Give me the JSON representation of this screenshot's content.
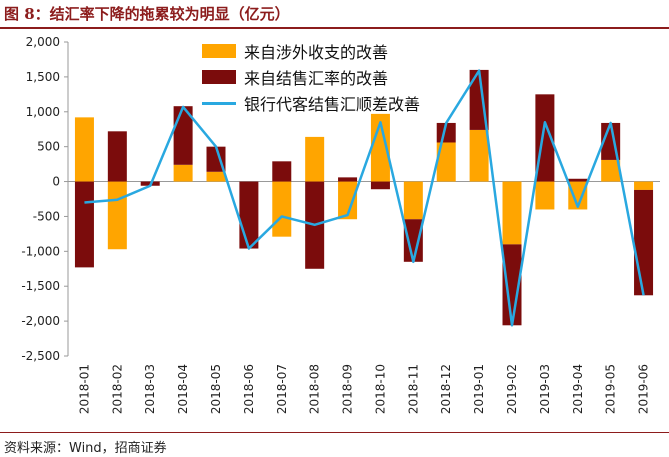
{
  "header": {
    "title": "图 8：结汇率下降的拖累较为明显（亿元）"
  },
  "footer": {
    "source": "资料来源：Wind，招商证券"
  },
  "colors": {
    "accent": "#8c1c1c",
    "orange": "#FFA500",
    "darkred": "#7B0C0C",
    "line": "#29A8E0"
  },
  "chart_data": {
    "type": "bar",
    "title": "图 8：结汇率下降的拖累较为明显（亿元）",
    "xlabel": "",
    "ylabel": "",
    "ylim": [
      -2500,
      2000
    ],
    "yticks": [
      2000,
      1500,
      1000,
      500,
      0,
      -500,
      -1000,
      -1500,
      -2000,
      -2500
    ],
    "ytick_labels": [
      "2,000",
      "1,500",
      "1,000",
      "500",
      "0",
      "-500",
      "-1,000",
      "-1,500",
      "-2,000",
      "-2,500"
    ],
    "grid": false,
    "legend_position": "top-center",
    "categories": [
      "2018-01",
      "2018-02",
      "2018-03",
      "2018-04",
      "2018-05",
      "2018-06",
      "2018-07",
      "2018-08",
      "2018-09",
      "2018-10",
      "2018-11",
      "2018-12",
      "2019-01",
      "2019-02",
      "2019-03",
      "2019-04",
      "2019-05",
      "2019-06"
    ],
    "series": [
      {
        "name": "来自涉外收支的改善",
        "type": "bar",
        "color": "#FFA500",
        "values": [
          920,
          -970,
          0,
          240,
          140,
          0,
          -790,
          640,
          -540,
          970,
          -540,
          560,
          740,
          -900,
          -400,
          -400,
          310,
          -120
        ]
      },
      {
        "name": "来自结售汇率的改善",
        "type": "bar",
        "color": "#7B0C0C",
        "values": [
          -1230,
          720,
          -60,
          840,
          360,
          -960,
          290,
          -1250,
          60,
          -110,
          -610,
          280,
          860,
          -1160,
          1250,
          40,
          530,
          -1510
        ]
      },
      {
        "name": "银行代客结售汇顺差改善",
        "type": "line",
        "color": "#29A8E0",
        "values": [
          -300,
          -260,
          -60,
          1070,
          500,
          -960,
          -500,
          -620,
          -480,
          850,
          -1150,
          840,
          1590,
          -2060,
          850,
          -360,
          840,
          -1630
        ]
      }
    ]
  }
}
